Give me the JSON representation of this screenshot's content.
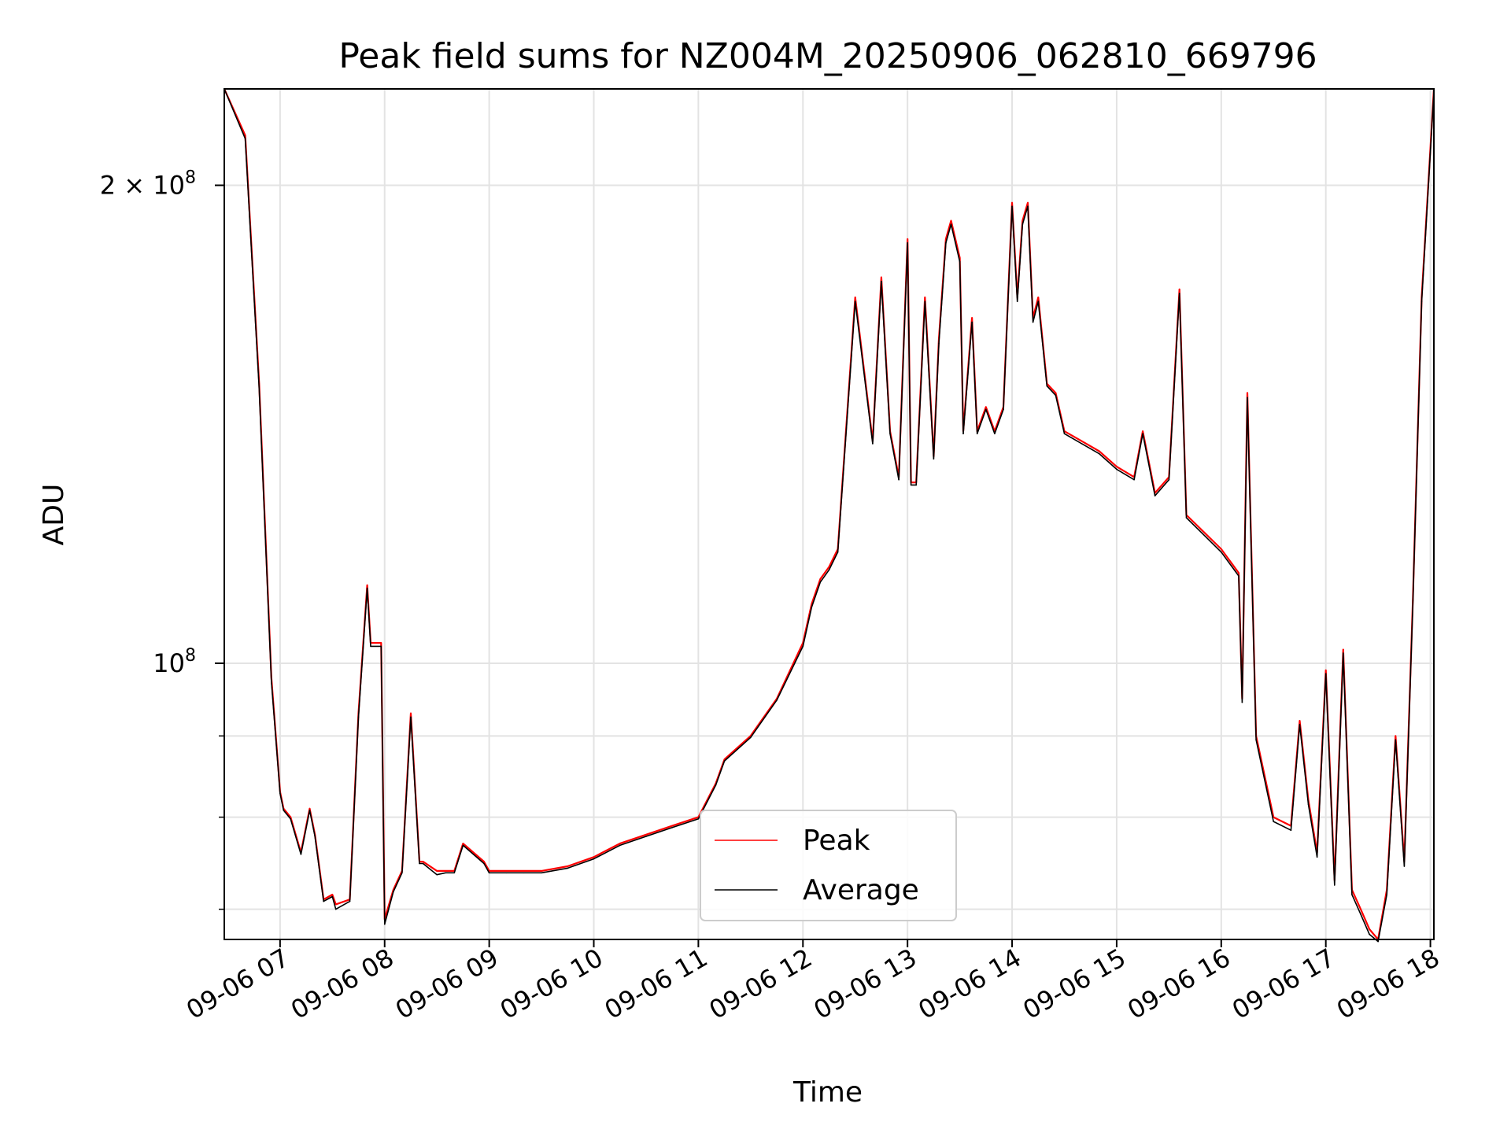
{
  "chart_data": {
    "type": "line",
    "title": "Peak field sums for NZ004M_20250906_062810_669796",
    "xlabel": "Time",
    "ylabel": "ADU",
    "y_scale": "log",
    "xlim": [
      "09-06 06:28",
      "09-06 18:02"
    ],
    "ylim": [
      67000000,
      230000000
    ],
    "grid": true,
    "legend_position": "bottom-center",
    "x_ticks": [
      "09-06 07",
      "09-06 08",
      "09-06 09",
      "09-06 10",
      "09-06 11",
      "09-06 12",
      "09-06 13",
      "09-06 14",
      "09-06 15",
      "09-06 16",
      "09-06 17",
      "09-06 18"
    ],
    "y_tick_labels": [
      {
        "value": 200000000,
        "base": "2 × 10",
        "exp": "8"
      },
      {
        "value": 100000000,
        "base": "10",
        "exp": "8"
      }
    ],
    "y_minor_ticks": [
      70000000,
      80000000,
      90000000
    ],
    "x": [
      "09-06 06:28",
      "09-06 06:40",
      "09-06 06:48",
      "09-06 06:55",
      "09-06 07:00",
      "09-06 07:02",
      "09-06 07:06",
      "09-06 07:12",
      "09-06 07:17",
      "09-06 07:20",
      "09-06 07:25",
      "09-06 07:30",
      "09-06 07:32",
      "09-06 07:40",
      "09-06 07:45",
      "09-06 07:50",
      "09-06 07:52",
      "09-06 07:58",
      "09-06 08:00",
      "09-06 08:05",
      "09-06 08:10",
      "09-06 08:15",
      "09-06 08:20",
      "09-06 08:22",
      "09-06 08:30",
      "09-06 08:35",
      "09-06 08:40",
      "09-06 08:45",
      "09-06 08:57",
      "09-06 09:00",
      "09-06 09:10",
      "09-06 09:20",
      "09-06 09:30",
      "09-06 09:45",
      "09-06 10:00",
      "09-06 10:15",
      "09-06 10:30",
      "09-06 10:45",
      "09-06 11:00",
      "09-06 11:10",
      "09-06 11:15",
      "09-06 11:30",
      "09-06 11:45",
      "09-06 12:00",
      "09-06 12:05",
      "09-06 12:10",
      "09-06 12:15",
      "09-06 12:20",
      "09-06 12:30",
      "09-06 12:40",
      "09-06 12:45",
      "09-06 12:50",
      "09-06 12:55",
      "09-06 13:00",
      "09-06 13:02",
      "09-06 13:05",
      "09-06 13:10",
      "09-06 13:15",
      "09-06 13:18",
      "09-06 13:22",
      "09-06 13:25",
      "09-06 13:30",
      "09-06 13:32",
      "09-06 13:37",
      "09-06 13:40",
      "09-06 13:45",
      "09-06 13:50",
      "09-06 13:55",
      "09-06 14:00",
      "09-06 14:03",
      "09-06 14:06",
      "09-06 14:09",
      "09-06 14:12",
      "09-06 14:15",
      "09-06 14:20",
      "09-06 14:25",
      "09-06 14:30",
      "09-06 14:40",
      "09-06 14:50",
      "09-06 15:00",
      "09-06 15:10",
      "09-06 15:15",
      "09-06 15:22",
      "09-06 15:30",
      "09-06 15:36",
      "09-06 15:40",
      "09-06 16:00",
      "09-06 16:10",
      "09-06 16:12",
      "09-06 16:15",
      "09-06 16:20",
      "09-06 16:30",
      "09-06 16:40",
      "09-06 16:45",
      "09-06 16:50",
      "09-06 16:55",
      "09-06 17:00",
      "09-06 17:05",
      "09-06 17:10",
      "09-06 17:15",
      "09-06 17:20",
      "09-06 17:25",
      "09-06 17:30",
      "09-06 17:35",
      "09-06 17:40",
      "09-06 17:45",
      "09-06 17:50",
      "09-06 17:55",
      "09-06 18:02"
    ],
    "series": [
      {
        "name": "Peak",
        "color": "#ff0000",
        "values": [
          230000000,
          215000000,
          150000000,
          98000000,
          83000000,
          81000000,
          80000000,
          76000000,
          81000000,
          78000000,
          71000000,
          71500000,
          70500000,
          71000000,
          93000000,
          112000000,
          103000000,
          103000000,
          69000000,
          72000000,
          74000000,
          93000000,
          75000000,
          75000000,
          74000000,
          74000000,
          74000000,
          77000000,
          75000000,
          74000000,
          74000000,
          74000000,
          74000000,
          74500000,
          75500000,
          77000000,
          78000000,
          79000000,
          80000000,
          84000000,
          87000000,
          90000000,
          95000000,
          103000000,
          109000000,
          113000000,
          115000000,
          118000000,
          170000000,
          138000000,
          175000000,
          140000000,
          131000000,
          185000000,
          130000000,
          130000000,
          170000000,
          135000000,
          160000000,
          185000000,
          190000000,
          180000000,
          140000000,
          165000000,
          140000000,
          145000000,
          140000000,
          145000000,
          195000000,
          170000000,
          190000000,
          195000000,
          165000000,
          170000000,
          150000000,
          148000000,
          140000000,
          138000000,
          136000000,
          133000000,
          131000000,
          140000000,
          128000000,
          131000000,
          172000000,
          124000000,
          118000000,
          114000000,
          95000000,
          148000000,
          90000000,
          80000000,
          79000000,
          92000000,
          82000000,
          76000000,
          99000000,
          73000000,
          102000000,
          72000000,
          70000000,
          68000000,
          67000000,
          72000000,
          90000000,
          75000000,
          110000000,
          170000000,
          230000000
        ]
      },
      {
        "name": "Average",
        "color": "#000000",
        "values": [
          230000000,
          214000000,
          149000000,
          97500000,
          82800000,
          80800000,
          79800000,
          75800000,
          80800000,
          77800000,
          70800000,
          71300000,
          70000000,
          70800000,
          92500000,
          111500000,
          102500000,
          102500000,
          68500000,
          71800000,
          73800000,
          92500000,
          74800000,
          74800000,
          73600000,
          73800000,
          73800000,
          76800000,
          74800000,
          73800000,
          73800000,
          73800000,
          73800000,
          74300000,
          75300000,
          76800000,
          77800000,
          78800000,
          79800000,
          83800000,
          86800000,
          89800000,
          94800000,
          102500000,
          108500000,
          112500000,
          114500000,
          117500000,
          169000000,
          137500000,
          174000000,
          139500000,
          130500000,
          184000000,
          129500000,
          129500000,
          169000000,
          134500000,
          159000000,
          184000000,
          189000000,
          179000000,
          139500000,
          164000000,
          139500000,
          144500000,
          139500000,
          144500000,
          194000000,
          169000000,
          189000000,
          194000000,
          164000000,
          169000000,
          149500000,
          147500000,
          139500000,
          137500000,
          135500000,
          132500000,
          130500000,
          139500000,
          127500000,
          130500000,
          171000000,
          123500000,
          117500000,
          113500000,
          94500000,
          147000000,
          89500000,
          79500000,
          78500000,
          91500000,
          81500000,
          75500000,
          98500000,
          72500000,
          101500000,
          71500000,
          69500000,
          67500000,
          66800000,
          71500000,
          89500000,
          74500000,
          109500000,
          169000000,
          229000000
        ]
      }
    ]
  }
}
